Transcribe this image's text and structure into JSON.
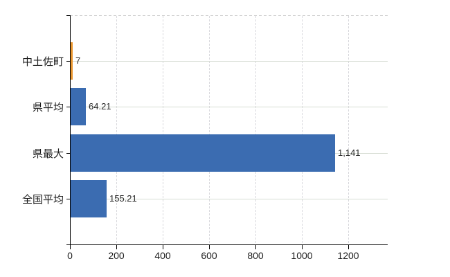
{
  "chart_data": {
    "type": "bar",
    "orientation": "horizontal",
    "categories": [
      "中土佐町",
      "県平均",
      "県最大",
      "全国平均"
    ],
    "values": [
      7,
      64.21,
      1141,
      155.21
    ],
    "value_labels": [
      "7",
      "64.21",
      "1,141",
      "155.21"
    ],
    "series_colors": [
      "#e9962f",
      "#3b6cb1",
      "#3b6cb1",
      "#3b6cb1"
    ],
    "x_ticks": [
      0,
      200,
      400,
      600,
      800,
      1000,
      1200
    ],
    "x_tick_labels": [
      "0",
      "200",
      "400",
      "600",
      "800",
      "1000",
      "1200"
    ],
    "xlim": [
      0,
      1370
    ],
    "title": "",
    "xlabel": "",
    "ylabel": "",
    "grid": "on",
    "legend": "none"
  },
  "colors": {
    "bar_primary": "#3b6cb1",
    "bar_highlight": "#e9962f",
    "grid_horizontal": "#d7ddd3",
    "grid_vertical": "#d8d8dc",
    "plot_top_border": "#cfcfcf",
    "axis": "#000000",
    "text": "#222222",
    "background": "#ffffff"
  }
}
